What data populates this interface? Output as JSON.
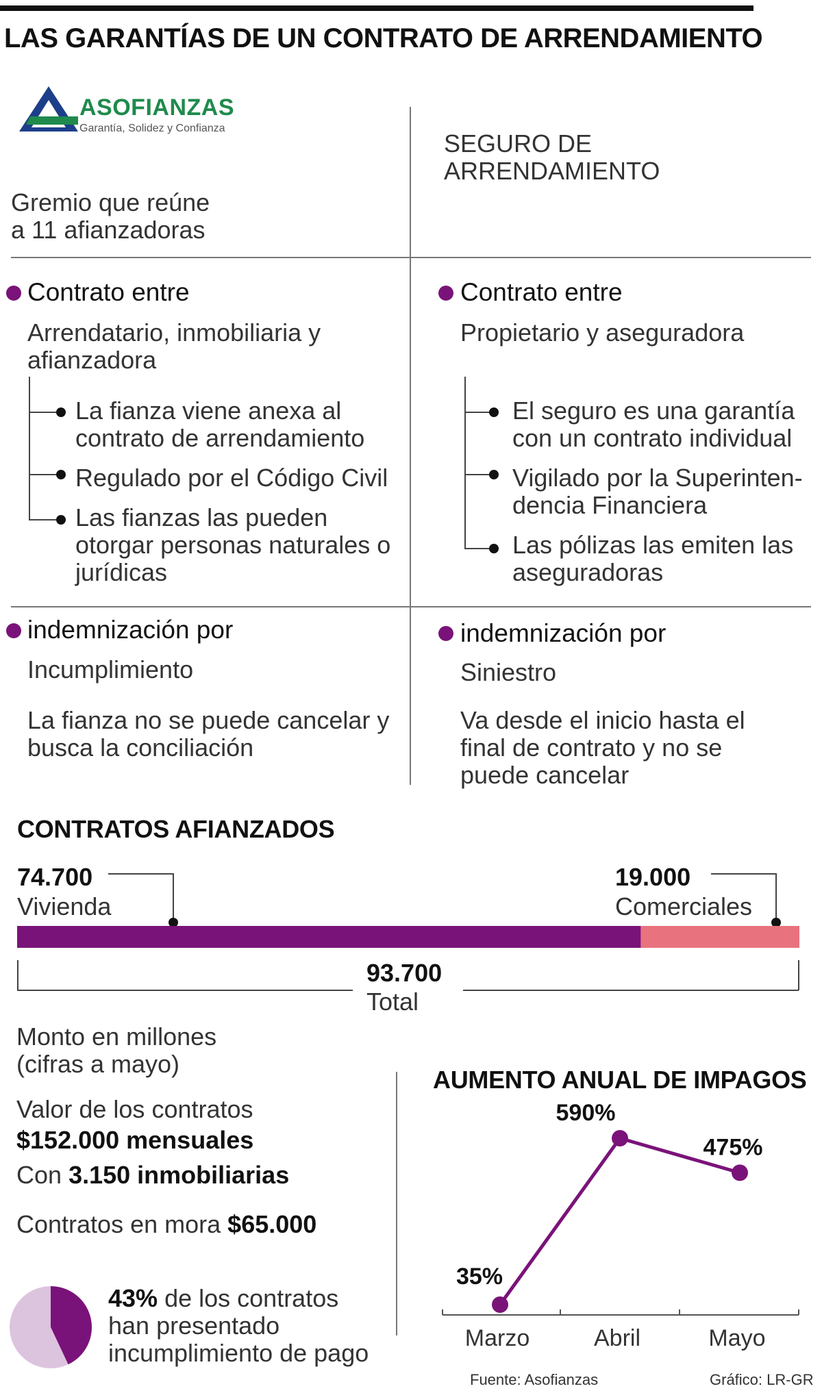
{
  "title": "LAS GARANTÍAS DE UN CONTRATO DE ARRENDAMIENTO",
  "logo": {
    "name": "ASOFIANZAS",
    "tagline": "Garantía, Solidez y Confianza",
    "color": "#1f8a4c",
    "mark_color": "#1d3f8a"
  },
  "left": {
    "intro": [
      "Gremio que reúne",
      "a 11 afianzadoras"
    ],
    "contract_heading": "Contrato entre",
    "contract_parties": [
      "Arrendatario, inmobiliaria y",
      "afianzadora"
    ],
    "bullets": [
      [
        "La fianza viene anexa al",
        "contrato de arrendamiento"
      ],
      [
        "Regulado por el Código Civil"
      ],
      [
        "Las fianzas las pueden",
        "otorgar personas naturales o",
        "jurídicas"
      ]
    ],
    "indemn_heading": "indemnización por",
    "indemn_type": "Incumplimiento",
    "indemn_desc": [
      "La fianza no se puede cancelar y",
      "busca la conciliación"
    ]
  },
  "right": {
    "intro": [
      "SEGURO DE",
      "ARRENDAMIENTO"
    ],
    "contract_heading": "Contrato entre",
    "contract_parties": [
      "Propietario y aseguradora"
    ],
    "bullets": [
      [
        "El seguro es una garantía",
        "con un contrato individual"
      ],
      [
        "Vigilado por la Superinten-",
        "dencia Financiera"
      ],
      [
        "Las pólizas las emiten las",
        "aseguradoras"
      ]
    ],
    "indemn_heading": "indemnización por",
    "indemn_type": "Siniestro",
    "indemn_desc": [
      "Va desde el inicio hasta el",
      "final de contrato y no se",
      "puede cancelar"
    ]
  },
  "contracts": {
    "heading": "CONTRATOS AFIANZADOS",
    "total_label": "93.700",
    "total_name": "Total"
  },
  "money": {
    "intro": [
      "Monto en millones",
      "(cifras a mayo)"
    ],
    "value_label": "Valor de los contratos",
    "value_amount": "$152.000 mensuales",
    "with_prefix": "Con",
    "with_amount": "3.150 inmobiliarias",
    "overdue_label": "Contratos en mora",
    "overdue_amount": "$65.000",
    "pie_pct": "43%",
    "pie_text": [
      "de los contratos",
      "han presentado",
      "incumplimiento de pago"
    ]
  },
  "impagos": {
    "heading": "AUMENTO ANUAL DE IMPAGOS"
  },
  "source": "Fuente: Asofianzas",
  "credit": "Gráfico: LR-GR",
  "chart_data": [
    {
      "type": "bar",
      "title": "CONTRATOS AFIANZADOS",
      "stacked": true,
      "orientation": "horizontal",
      "total": 93700,
      "series": [
        {
          "name": "Vivienda",
          "value": 74700,
          "label": "74.700",
          "color": "#7a1379"
        },
        {
          "name": "Comerciales",
          "value": 19000,
          "label": "19.000",
          "color": "#e8737f"
        }
      ]
    },
    {
      "type": "pie",
      "values": [
        43,
        57
      ],
      "labels": [
        "43%",
        ""
      ],
      "colors": [
        "#7a1379",
        "#dcc3de"
      ]
    },
    {
      "type": "line",
      "title": "AUMENTO ANUAL DE IMPAGOS",
      "categories": [
        "Marzo",
        "Abril",
        "Mayo"
      ],
      "values": [
        35,
        590,
        475
      ],
      "labels": [
        "35%",
        "590%",
        "475%"
      ],
      "color": "#7a1379",
      "ylim": [
        35,
        590
      ],
      "grid": false
    }
  ]
}
